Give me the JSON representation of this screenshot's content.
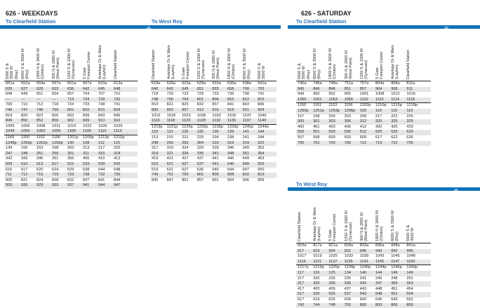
{
  "wk": {
    "title": "626 - WEEKDAYS",
    "sub_clearfield": "To Clearfield Station",
    "sub_westroy": "To West Roy",
    "to_clearfield": {
      "headers": [
        "5500 S &\n3500 W\n(Roy)",
        "6000 S & 3500 W\n(Roy)",
        "1800 N & 2000 W\n(Clinton)",
        "300 N & 2000 W\n(West Point)",
        "1550 S & 1000 W\n(Syracuse)",
        "5 Gate\nFreeport Center",
        "Antelope Dr & Main\n(Layton)",
        "Clearfield Station"
      ],
      "rows": [
        [
          "551a",
          "552a",
          "554a",
          "557a",
          "601a",
          "607a",
          "610a",
          "613a"
        ],
        [
          "626",
          "627",
          "629",
          "632",
          "636",
          "642",
          "645",
          "648"
        ],
        [
          "648",
          "649",
          "651",
          "654",
          "657",
          "704",
          "707",
          "710"
        ],
        [
          "---",
          "---",
          "---",
          "---",
          "715",
          "724",
          "729",
          "732"
        ],
        [
          "709",
          "710",
          "712",
          "718",
          "724",
          "733",
          "738",
          "741"
        ],
        [
          "746",
          "747",
          "749",
          "755",
          "801",
          "810",
          "815",
          "818"
        ],
        [
          "819",
          "820",
          "822",
          "826",
          "832",
          "839",
          "843",
          "846"
        ],
        [
          "849",
          "850",
          "852",
          "856",
          "902",
          "909",
          "913",
          "916"
        ],
        [
          "1005",
          "1006",
          "1008",
          "1011",
          "1016",
          "1022",
          "1026",
          "1029"
        ],
        [
          "1049",
          "1050",
          "1052",
          "1055",
          "1100",
          "1106",
          "1110",
          "1113"
        ],
        [
          "1149",
          "1150",
          "1152",
          "1156",
          "1201p",
          "1209p",
          "1213p",
          "1216p"
        ],
        [
          "1249p",
          "1250p",
          "1252p",
          "1256p",
          "100",
          "108",
          "112",
          "115"
        ],
        [
          "149",
          "150",
          "153",
          "158",
          "203",
          "213",
          "217",
          "220"
        ],
        [
          "247",
          "248",
          "251",
          "256",
          "301",
          "311",
          "315",
          "318"
        ],
        [
          "342",
          "343",
          "346",
          "351",
          "356",
          "406",
          "410",
          "413"
        ],
        [
          "509",
          "510",
          "513",
          "517",
          "522",
          "533",
          "539",
          "543"
        ],
        [
          "616",
          "617",
          "620",
          "624",
          "629",
          "638",
          "644",
          "648"
        ],
        [
          "711",
          "712",
          "715",
          "719",
          "723",
          "728",
          "732",
          "735"
        ],
        [
          "820",
          "821",
          "824",
          "828",
          "832",
          "837",
          "841",
          "844"
        ],
        [
          "925",
          "926",
          "929",
          "933",
          "937",
          "941",
          "944",
          "947"
        ]
      ]
    },
    "to_westroy": {
      "headers": [
        "Clearfield Station",
        "Antelope Dr & Main\n(Layton)",
        "5 Gate\nFreeport Center",
        "1550 S & 1000 W\n(Syracuse)",
        "300 N & 2000 W\n(West Point)",
        "1800 N & 2000 W\n(Clinton)",
        "6000 S & 3500 W\n(Roy)",
        "5500 S &\n3500 W"
      ],
      "rows": [
        [
          "618a",
          "620a",
          "623a",
          "629a",
          "633a",
          "636a",
          "638a",
          "641a"
        ],
        [
          "640",
          "642",
          "645",
          "651",
          "655",
          "658",
          "700",
          "703"
        ],
        [
          "718",
          "720",
          "723",
          "729",
          "733",
          "736",
          "738",
          "741"
        ],
        [
          "748",
          "750",
          "754",
          "801",
          "806",
          "810",
          "812",
          "815"
        ],
        [
          "819",
          "821",
          "825",
          "832",
          "837",
          "841",
          "843",
          "846"
        ],
        [
          "900",
          "902",
          "907",
          "912",
          "916",
          "919",
          "921",
          "924"
        ],
        [
          "1016",
          "1018",
          "1023",
          "1028",
          "1032",
          "1035",
          "1037",
          "1040"
        ],
        [
          "1116",
          "1118",
          "1123",
          "1128",
          "1132",
          "1135",
          "1137",
          "1140"
        ],
        [
          "1219p",
          "1221p",
          "1226p",
          "1232p",
          "1236p",
          "1239p",
          "1241p",
          "1244p"
        ],
        [
          "119",
          "121",
          "126",
          "132",
          "136",
          "139",
          "141",
          "144"
        ],
        [
          "213",
          "215",
          "221",
          "229",
          "234",
          "238",
          "241",
          "244"
        ],
        [
          "248",
          "250",
          "255",
          "304",
          "310",
          "316",
          "319",
          "322"
        ],
        [
          "317",
          "319",
          "324",
          "333",
          "339",
          "346",
          "349",
          "352"
        ],
        [
          "319",
          "321",
          "326",
          "335",
          "341",
          "348",
          "351",
          "354"
        ],
        [
          "419",
          "421",
          "427",
          "437",
          "441",
          "446",
          "449",
          "453"
        ],
        [
          "519",
          "521",
          "527",
          "537",
          "541",
          "546",
          "549",
          "553"
        ],
        [
          "619",
          "621",
          "627",
          "636",
          "640",
          "644",
          "647",
          "650"
        ],
        [
          "749",
          "751",
          "755",
          "801",
          "805",
          "808",
          "810",
          "813"
        ],
        [
          "845",
          "847",
          "851",
          "857",
          "901",
          "904",
          "906",
          "909"
        ]
      ]
    }
  },
  "sat": {
    "title": "626 - SATURDAY",
    "sub_clearfield": "To Clearfield Station",
    "sub_westroy": "To West Roy",
    "to_clearfield": {
      "headers": [
        "5500 S &\n3500 W\n(Roy)",
        "6000 S & 3500 W\n(Roy)",
        "1800 N & 2000 W\n(Clinton)",
        "300 N & 2000 W\n(West Point)",
        "1550 S & 1000 W\n(Syracuse)",
        "5 Gate\nFreeport Center",
        "Antelope Dr & Main\n(Layton)",
        "Clearfield Station"
      ],
      "rows": [
        [
          "745a",
          "746a",
          "748a",
          "751a",
          "757a",
          "804a",
          "808a",
          "811a"
        ],
        [
          "845",
          "846",
          "848",
          "851",
          "857",
          "904",
          "908",
          "911"
        ],
        [
          "949",
          "950",
          "952",
          "955",
          "1001",
          "1008",
          "1012",
          "1015"
        ],
        [
          "1050",
          "1051",
          "1053",
          "1056",
          "1102",
          "1110",
          "1114",
          "1118"
        ],
        [
          "1150",
          "1151",
          "1153",
          "1156",
          "1202p",
          "1210p",
          "1215p",
          "1219p"
        ],
        [
          "1250p",
          "1251p",
          "1253p",
          "1256p",
          "102",
          "110",
          "115",
          "119"
        ],
        [
          "157",
          "158",
          "200",
          "203",
          "209",
          "217",
          "222",
          "226"
        ],
        [
          "300",
          "301",
          "303",
          "306",
          "312",
          "320",
          "325",
          "329"
        ],
        [
          "400",
          "401",
          "403",
          "406",
          "412",
          "420",
          "425",
          "429"
        ],
        [
          "500",
          "501",
          "503",
          "506",
          "512",
          "520",
          "525",
          "529"
        ],
        [
          "557",
          "558",
          "600",
          "603",
          "609",
          "617",
          "622",
          "626"
        ],
        [
          "700",
          "701",
          "703",
          "706",
          "712",
          "719",
          "722",
          "726"
        ]
      ]
    },
    "to_westroy": {
      "headers": [
        "Clearfield Station",
        "Antelope Dr & Main\n(Layton)",
        "5 Gate\nFreeport Center",
        "1550 S & 1000 W\n(Syracuse)",
        "300 N & 2000 W\n(West Point)",
        "1800 N & 2000 W\n(Clinton)",
        "6000 S & 3500 W\n(Roy)",
        "5500 S &\n3500 W"
      ],
      "rows": [
        [
          "815a",
          "817a",
          "821a",
          "828a",
          "833a",
          "836a",
          "838a",
          "841a"
        ],
        [
          "917",
          "919",
          "924",
          "931",
          "936",
          "940",
          "942",
          "945"
        ],
        [
          "1017",
          "1019",
          "1025",
          "1033",
          "1039",
          "1043",
          "1045",
          "1048"
        ],
        [
          "1119",
          "1121",
          "1127",
          "1135",
          "1141",
          "1145",
          "1147",
          "1150"
        ],
        [
          "1217p",
          "1219p",
          "1225p",
          "1234p",
          "1240p",
          "1244p",
          "1246p",
          "1249p"
        ],
        [
          "117",
          "119",
          "125",
          "134",
          "140",
          "144",
          "146",
          "149"
        ],
        [
          "217",
          "220",
          "226",
          "235",
          "241",
          "245",
          "248",
          "251"
        ],
        [
          "317",
          "320",
          "326",
          "336",
          "342",
          "347",
          "350",
          "353"
        ],
        [
          "417",
          "420",
          "426",
          "437",
          "443",
          "448",
          "451",
          "454"
        ],
        [
          "517",
          "520",
          "526",
          "537",
          "543",
          "548",
          "551",
          "554"
        ],
        [
          "617",
          "619",
          "625",
          "636",
          "642",
          "646",
          "649",
          "652"
        ],
        [
          "742",
          "744",
          "748",
          "755",
          "800",
          "803",
          "806",
          "809"
        ]
      ]
    }
  }
}
